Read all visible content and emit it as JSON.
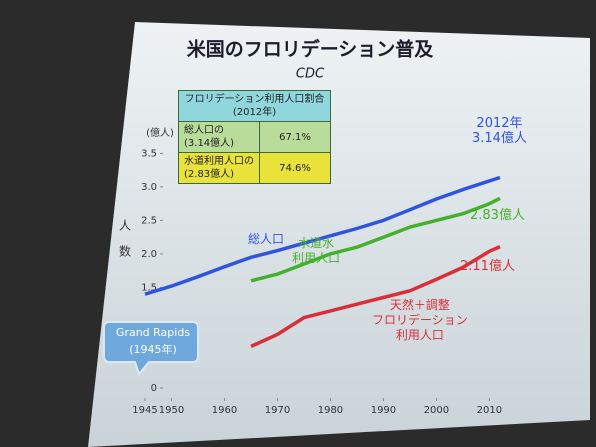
{
  "chart_data": {
    "type": "line",
    "title": "米国のフロリデーション普及",
    "subtitle": "CDC",
    "y_unit": "(億人)",
    "ylabel": "人数",
    "x": [
      1945,
      1950,
      1955,
      1960,
      1965,
      1970,
      1975,
      1980,
      1985,
      1990,
      1995,
      2000,
      2005,
      2010,
      2012
    ],
    "xlim": [
      1945,
      2012
    ],
    "xticks": [
      1945,
      1950,
      1960,
      1970,
      1980,
      1990,
      2000,
      2010
    ],
    "ylim": [
      0,
      3.7
    ],
    "yticks": [
      0,
      1.5,
      {
        "value": 2,
        "label": "2.0"
      },
      2.5,
      {
        "value": 3,
        "label": "3.0"
      },
      3.5
    ],
    "series": [
      {
        "name": "総人口",
        "color": "#2f55e0",
        "values": [
          1.4,
          1.52,
          1.66,
          1.81,
          1.95,
          2.05,
          2.16,
          2.27,
          2.38,
          2.5,
          2.66,
          2.82,
          2.96,
          3.09,
          3.14
        ],
        "value_labels": [
          null,
          null,
          null,
          null,
          null,
          null,
          null,
          null,
          null,
          null,
          null,
          null,
          null,
          null,
          "2012年\n3.14億人"
        ]
      },
      {
        "name": "水道水\n利用人口",
        "color": "#45b02e",
        "values": [
          null,
          null,
          null,
          null,
          1.6,
          1.7,
          1.85,
          2.0,
          2.1,
          2.25,
          2.4,
          2.5,
          2.6,
          2.75,
          2.83
        ],
        "value_labels": [
          null,
          null,
          null,
          null,
          null,
          null,
          null,
          null,
          null,
          null,
          null,
          null,
          null,
          null,
          "2.83億人"
        ]
      },
      {
        "name": "天然＋調整\nフロリデーション\n利用人口",
        "color": "#d63038",
        "values": [
          null,
          null,
          null,
          null,
          0.62,
          0.8,
          1.05,
          1.15,
          1.25,
          1.35,
          1.45,
          1.62,
          1.8,
          2.04,
          2.11
        ],
        "value_labels": [
          null,
          null,
          null,
          null,
          null,
          null,
          null,
          null,
          null,
          null,
          null,
          null,
          null,
          null,
          "2.11億人"
        ]
      }
    ],
    "callout": {
      "x": 1945,
      "lines": [
        "Grand Rapids",
        "(1945年)"
      ]
    },
    "table": {
      "title": "フロリデーション利用人口割合",
      "subtitle": "(2012年)",
      "rows": [
        {
          "label": "総人口の",
          "sub": "(3.14億人)",
          "share": "67.1%"
        },
        {
          "label": "水道利用人口の",
          "sub": "(2.83億人)",
          "share": "74.6%"
        }
      ]
    }
  }
}
